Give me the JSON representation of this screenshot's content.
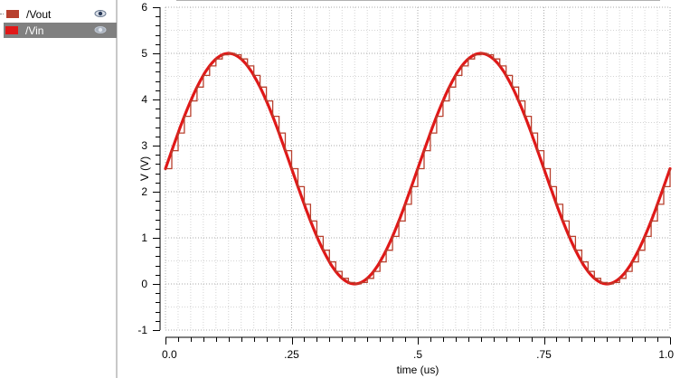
{
  "legend": {
    "items": [
      {
        "name": "/Vout",
        "color": "#b8402e",
        "visible_icon": "eye-icon",
        "selected": false
      },
      {
        "name": "/Vin",
        "color": "#e01818",
        "visible_icon": "eye-icon",
        "selected": true
      }
    ]
  },
  "chart_data": {
    "type": "line",
    "title": "",
    "xlabel": "time (us)",
    "ylabel": "V (V)",
    "xlim": [
      0.0,
      1.0
    ],
    "ylim": [
      -1,
      6
    ],
    "x_ticks": [
      "0.0",
      ".25",
      ".5",
      ".75",
      "1.0"
    ],
    "x_tick_values": [
      0.0,
      0.25,
      0.5,
      0.75,
      1.0
    ],
    "y_ticks": [
      "-1",
      "0",
      "1",
      "2",
      "3",
      "4",
      "5",
      "6"
    ],
    "y_tick_values": [
      -1,
      0,
      1,
      2,
      3,
      4,
      5,
      6
    ],
    "grid": true,
    "series": [
      {
        "name": "/Vin",
        "kind": "sine",
        "offset": 2.5,
        "amplitude": 2.5,
        "period_us": 0.5,
        "color": "#e01818",
        "x": [
          0.0,
          0.0625,
          0.125,
          0.1875,
          0.25,
          0.3125,
          0.375,
          0.4375,
          0.5,
          0.5625,
          0.625,
          0.6875,
          0.75,
          0.8125,
          0.875,
          0.9375,
          1.0
        ],
        "values": [
          2.5,
          4.27,
          5.0,
          4.27,
          2.5,
          0.73,
          0.0,
          0.73,
          2.5,
          4.27,
          5.0,
          4.27,
          2.5,
          0.73,
          0.0,
          0.73,
          2.5
        ]
      },
      {
        "name": "/Vout",
        "kind": "staircase",
        "steps_per_period": 40,
        "offset": 2.5,
        "amplitude": 2.5,
        "period_us": 0.5,
        "color": "#b8402e",
        "x": [
          0.0,
          0.125,
          0.25,
          0.375,
          0.5,
          0.625,
          0.75,
          0.875,
          1.0
        ],
        "values": [
          2.5,
          5.0,
          2.5,
          0.0,
          2.5,
          5.0,
          2.5,
          0.0,
          2.5
        ]
      }
    ]
  }
}
